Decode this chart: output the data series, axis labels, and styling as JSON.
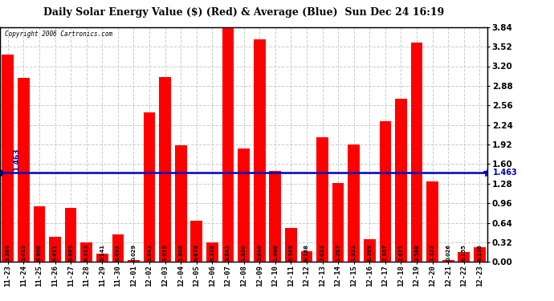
{
  "title": "Daily Solar Energy Value ($) (Red) & Average (Blue)  Sun Dec 24 16:19",
  "copyright": "Copyright 2006 Cartronics.com",
  "average": 1.463,
  "bar_color": "#FF0000",
  "avg_line_color": "#0000BB",
  "background_color": "#FFFFFF",
  "plot_bg_color": "#FFFFFF",
  "grid_color": "#CCCCCC",
  "ylim": [
    0,
    3.84
  ],
  "yticks": [
    0.0,
    0.32,
    0.64,
    0.96,
    1.28,
    1.6,
    1.92,
    2.24,
    2.56,
    2.88,
    3.2,
    3.52,
    3.84
  ],
  "categories": [
    "11-23",
    "11-24",
    "11-25",
    "11-26",
    "11-27",
    "11-28",
    "11-29",
    "11-30",
    "12-01",
    "12-02",
    "12-03",
    "12-04",
    "12-05",
    "12-06",
    "12-07",
    "12-08",
    "12-09",
    "12-10",
    "12-11",
    "12-12",
    "12-13",
    "12-14",
    "12-15",
    "12-16",
    "12-17",
    "12-18",
    "12-19",
    "12-20",
    "12-21",
    "12-22",
    "12-23"
  ],
  "values": [
    3.384,
    3.015,
    0.908,
    0.411,
    0.885,
    0.313,
    0.141,
    0.453,
    0.029,
    2.441,
    3.019,
    1.909,
    0.674,
    0.318,
    3.842,
    1.85,
    3.646,
    1.486,
    0.549,
    0.168,
    2.033,
    1.287,
    1.923,
    0.369,
    2.307,
    2.671,
    3.588,
    1.322,
    0.026,
    0.155,
    0.236
  ]
}
